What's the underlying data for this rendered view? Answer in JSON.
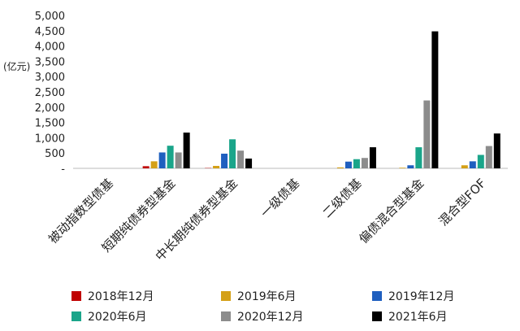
{
  "chart_data": {
    "type": "bar",
    "unit_label": "(亿元)",
    "categories": [
      "被动指数型债基",
      "短期纯债券型基金",
      "中长期纯债券型基金",
      "一级债基",
      "二级债基",
      "偏债混合型基金",
      "混合型FOF"
    ],
    "y_ticks": [
      "5,000",
      "4,500",
      "4,000",
      "3,500",
      "3,000",
      "2,500",
      "2,000",
      "1,500",
      "1,000",
      "500",
      "-"
    ],
    "ylim": [
      0,
      5000
    ],
    "legend_position": "bottom",
    "series": [
      {
        "name": "2018年12月",
        "color": "#c00000",
        "values": [
          0,
          70,
          10,
          0,
          0,
          0,
          0
        ]
      },
      {
        "name": "2019年6月",
        "color": "#d4a017",
        "values": [
          0,
          230,
          80,
          0,
          30,
          20,
          100
        ]
      },
      {
        "name": "2019年12月",
        "color": "#1f5fbf",
        "values": [
          0,
          520,
          480,
          0,
          220,
          100,
          230
        ]
      },
      {
        "name": "2020年6月",
        "color": "#1aa58a",
        "values": [
          0,
          740,
          950,
          0,
          300,
          690,
          440
        ]
      },
      {
        "name": "2020年12月",
        "color": "#8c8c8c",
        "values": [
          0,
          520,
          580,
          0,
          340,
          2220,
          730
        ]
      },
      {
        "name": "2021年6月",
        "color": "#000000",
        "values": [
          0,
          1170,
          320,
          0,
          690,
          4480,
          1140
        ]
      }
    ]
  }
}
